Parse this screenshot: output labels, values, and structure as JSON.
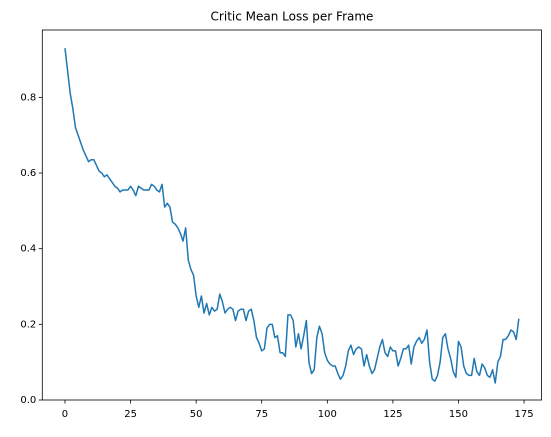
{
  "chart_data": {
    "type": "line",
    "title": "Critic Mean Loss per Frame",
    "x": [
      0,
      1,
      2,
      3,
      4,
      5,
      6,
      7,
      8,
      9,
      10,
      11,
      12,
      13,
      14,
      15,
      16,
      17,
      18,
      19,
      20,
      21,
      22,
      23,
      24,
      25,
      26,
      27,
      28,
      29,
      30,
      31,
      32,
      33,
      34,
      35,
      36,
      37,
      38,
      39,
      40,
      41,
      42,
      43,
      44,
      45,
      46,
      47,
      48,
      49,
      50,
      51,
      52,
      53,
      54,
      55,
      56,
      57,
      58,
      59,
      60,
      61,
      62,
      63,
      64,
      65,
      66,
      67,
      68,
      69,
      70,
      71,
      72,
      73,
      74,
      75,
      76,
      77,
      78,
      79,
      80,
      81,
      82,
      83,
      84,
      85,
      86,
      87,
      88,
      89,
      90,
      91,
      92,
      93,
      94,
      95,
      96,
      97,
      98,
      99,
      100,
      101,
      102,
      103,
      104,
      105,
      106,
      107,
      108,
      109,
      110,
      111,
      112,
      113,
      114,
      115,
      116,
      117,
      118,
      119,
      120,
      121,
      122,
      123,
      124,
      125,
      126,
      127,
      128,
      129,
      130,
      131,
      132,
      133,
      134,
      135,
      136,
      137,
      138,
      139,
      140,
      141,
      142,
      143,
      144,
      145,
      146,
      147,
      148,
      149,
      150,
      151,
      152,
      153,
      154,
      155,
      156,
      157,
      158,
      159,
      160,
      161,
      162,
      163,
      164,
      165,
      166,
      167,
      168,
      169,
      170,
      171,
      172,
      173
    ],
    "series": [
      {
        "color": "#1f77b4",
        "values": [
          0.93,
          0.87,
          0.81,
          0.77,
          0.72,
          0.7,
          0.68,
          0.66,
          0.645,
          0.63,
          0.635,
          0.635,
          0.62,
          0.605,
          0.6,
          0.59,
          0.595,
          0.585,
          0.575,
          0.565,
          0.56,
          0.55,
          0.555,
          0.555,
          0.555,
          0.565,
          0.555,
          0.54,
          0.565,
          0.56,
          0.555,
          0.555,
          0.555,
          0.57,
          0.565,
          0.555,
          0.55,
          0.57,
          0.51,
          0.52,
          0.51,
          0.47,
          0.465,
          0.455,
          0.44,
          0.42,
          0.455,
          0.37,
          0.345,
          0.33,
          0.275,
          0.245,
          0.275,
          0.23,
          0.255,
          0.225,
          0.245,
          0.235,
          0.24,
          0.28,
          0.26,
          0.23,
          0.24,
          0.245,
          0.24,
          0.21,
          0.235,
          0.24,
          0.24,
          0.21,
          0.235,
          0.24,
          0.21,
          0.165,
          0.15,
          0.13,
          0.135,
          0.19,
          0.2,
          0.2,
          0.165,
          0.17,
          0.125,
          0.125,
          0.115,
          0.225,
          0.225,
          0.21,
          0.14,
          0.175,
          0.135,
          0.17,
          0.21,
          0.1,
          0.07,
          0.08,
          0.165,
          0.195,
          0.175,
          0.125,
          0.105,
          0.095,
          0.09,
          0.09,
          0.07,
          0.055,
          0.065,
          0.09,
          0.13,
          0.145,
          0.12,
          0.135,
          0.14,
          0.135,
          0.09,
          0.12,
          0.09,
          0.07,
          0.08,
          0.11,
          0.14,
          0.16,
          0.125,
          0.115,
          0.14,
          0.13,
          0.13,
          0.09,
          0.11,
          0.135,
          0.135,
          0.145,
          0.095,
          0.14,
          0.155,
          0.165,
          0.15,
          0.16,
          0.185,
          0.1,
          0.055,
          0.05,
          0.065,
          0.1,
          0.165,
          0.175,
          0.135,
          0.11,
          0.075,
          0.06,
          0.155,
          0.14,
          0.09,
          0.07,
          0.065,
          0.065,
          0.11,
          0.075,
          0.065,
          0.095,
          0.085,
          0.065,
          0.06,
          0.08,
          0.045,
          0.1,
          0.115,
          0.16,
          0.16,
          0.17,
          0.185,
          0.18,
          0.16,
          0.215
        ]
      }
    ],
    "xlim": [
      -8.65,
      181.65
    ],
    "xticks": [
      0,
      25,
      50,
      75,
      100,
      125,
      150,
      175
    ],
    "ylim": [
      0,
      0.978
    ],
    "yticks": [
      {
        "value": 0,
        "label": "0.0"
      },
      0.2,
      0.4,
      0.6,
      0.8
    ]
  }
}
